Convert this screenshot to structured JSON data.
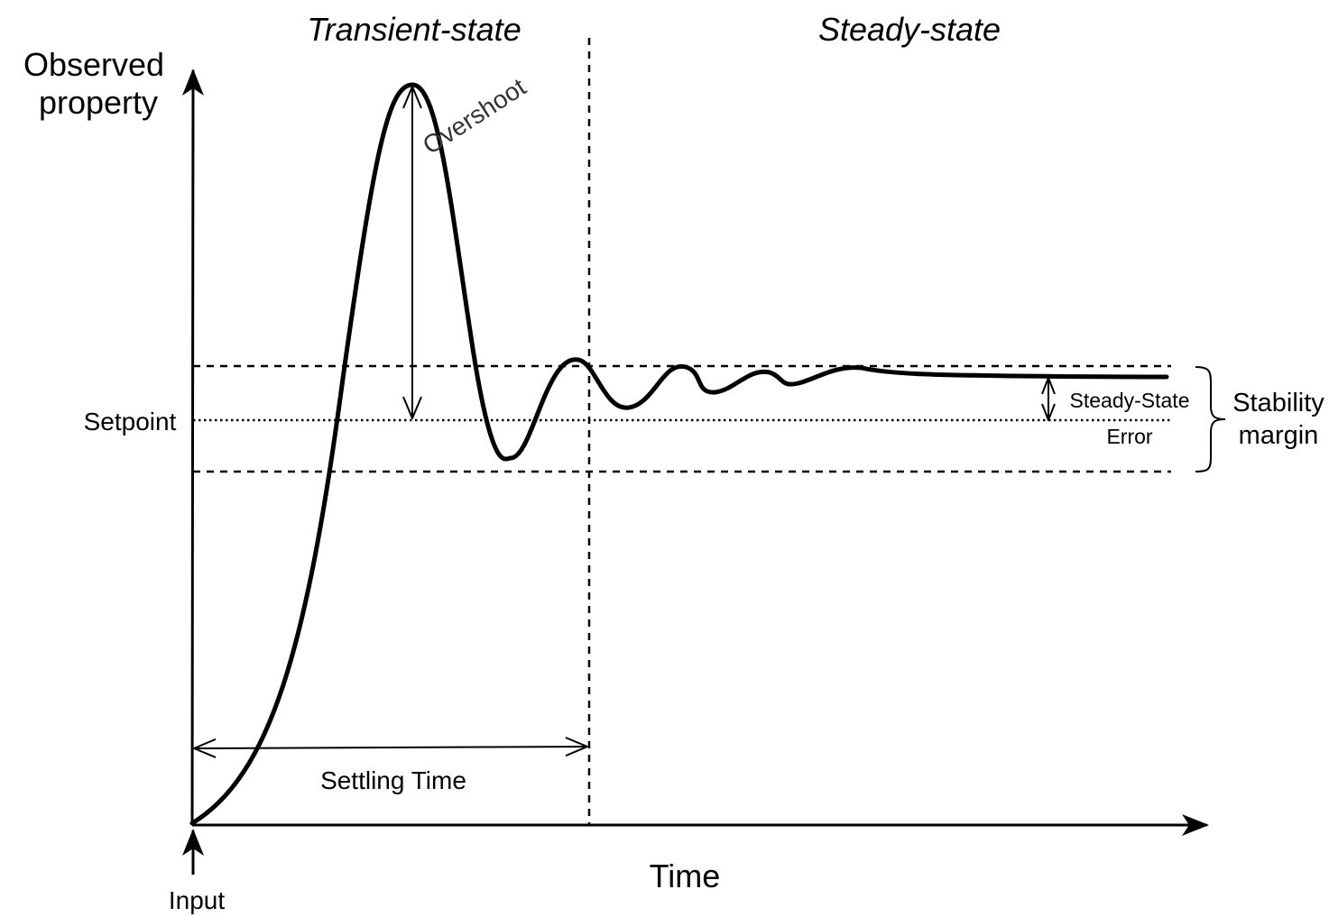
{
  "diagram": {
    "regions": {
      "transient": "Transient-state",
      "steady": "Steady-state"
    },
    "y_axis_label": [
      "Observed",
      "property"
    ],
    "x_axis_label": "Time",
    "input_label": "Input",
    "setpoint_label": "Setpoint",
    "overshoot_label": "Overshoot",
    "settling_time_label": "Settling Time",
    "steady_state_error_label": [
      "Steady-State",
      "Error"
    ],
    "stability_margin_label": [
      "Stability",
      "margin"
    ],
    "colors": {
      "ink": "#000000",
      "overshoot_text": "#333333"
    }
  }
}
